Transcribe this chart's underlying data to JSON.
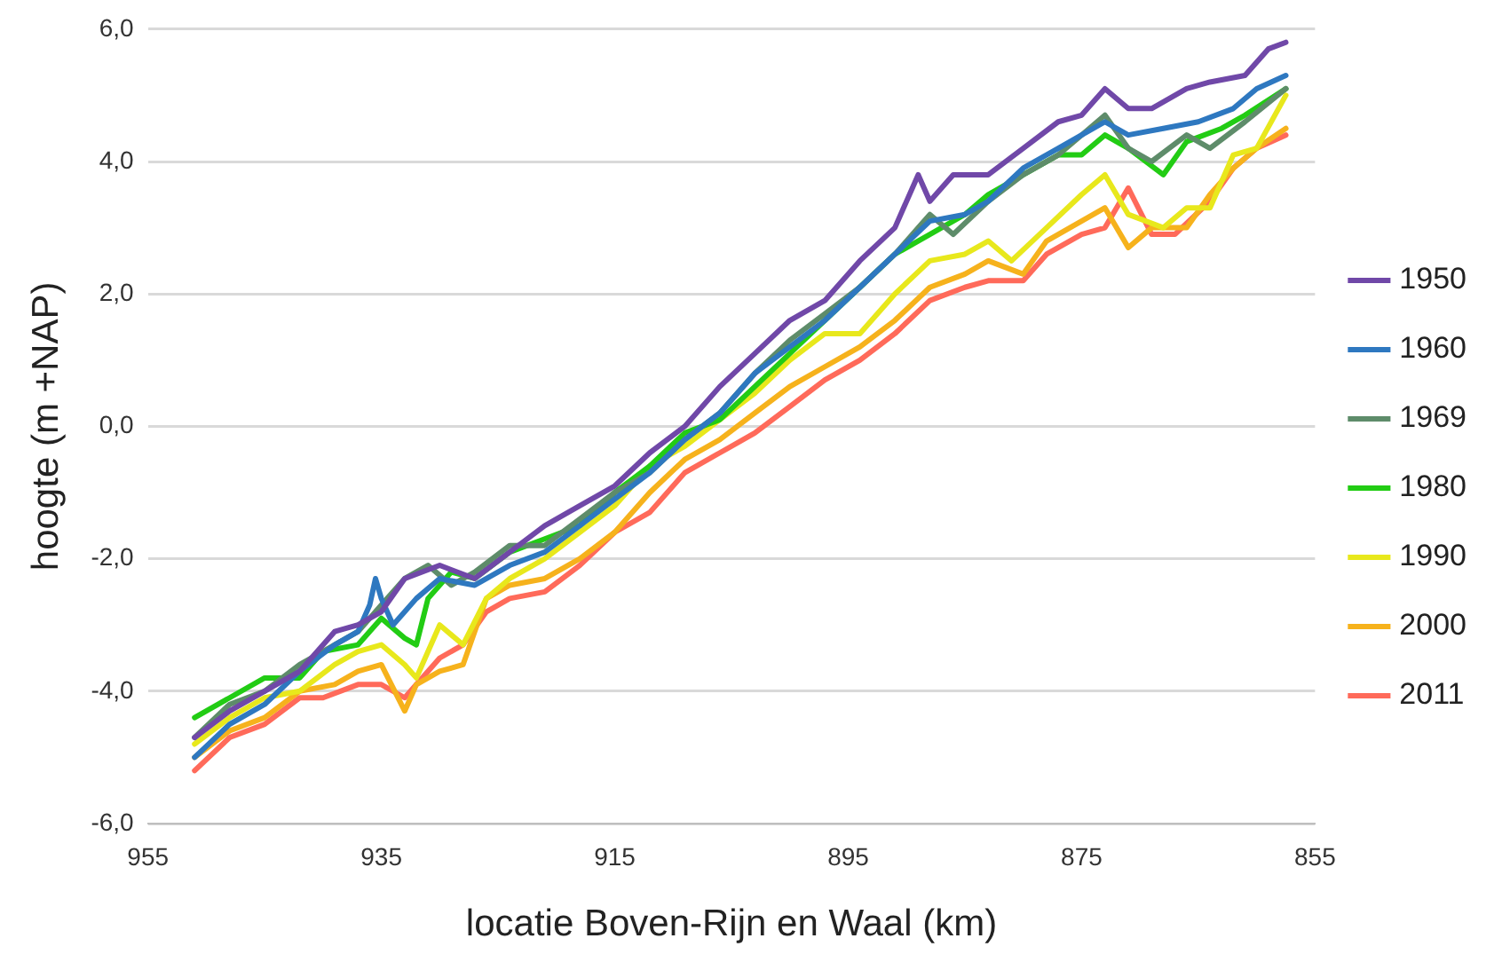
{
  "chart_data": {
    "type": "line",
    "xlabel": "locatie Boven-Rijn en Waal (km)",
    "ylabel": "hoogte (m +NAP)",
    "xlim": [
      955,
      855
    ],
    "xticks": [
      955,
      935,
      915,
      895,
      875,
      855
    ],
    "ylim": [
      -6,
      6
    ],
    "yticks": [
      {
        "value": -6,
        "label": "-6,0"
      },
      {
        "value": -4,
        "label": "-4,0"
      },
      {
        "value": -2,
        "label": "-2,0"
      },
      {
        "value": 0,
        "label": "0,0"
      },
      {
        "value": 2,
        "label": "2,0"
      },
      {
        "value": 4,
        "label": "4,0"
      },
      {
        "value": 6,
        "label": "6,0"
      }
    ],
    "grid": "y",
    "legend": "right",
    "marker": "none",
    "line_style": "solid",
    "series": [
      {
        "name": "1950",
        "color": "#7048a8",
        "x": [
          951,
          948,
          945,
          942,
          939,
          937,
          935,
          933,
          930,
          927,
          924,
          921,
          918,
          915,
          912,
          909,
          906,
          903,
          900,
          897,
          894,
          891,
          889,
          888,
          886,
          883,
          880,
          877,
          875,
          873,
          871,
          869,
          866,
          864,
          861,
          859,
          857.5
        ],
        "values": [
          -4.7,
          -4.3,
          -4.0,
          -3.7,
          -3.1,
          -3.0,
          -2.8,
          -2.3,
          -2.1,
          -2.3,
          -1.9,
          -1.5,
          -1.2,
          -0.9,
          -0.4,
          0.0,
          0.6,
          1.1,
          1.6,
          1.9,
          2.5,
          3.0,
          3.8,
          3.4,
          3.8,
          3.8,
          4.2,
          4.6,
          4.7,
          5.1,
          4.8,
          4.8,
          5.1,
          5.2,
          5.3,
          5.7,
          5.8
        ]
      },
      {
        "name": "1960",
        "color": "#2e78c0",
        "x": [
          951,
          948,
          945,
          942,
          939,
          937,
          936,
          935.5,
          935,
          934,
          932,
          930,
          927,
          924,
          921,
          918,
          915,
          912,
          909,
          906,
          903,
          900,
          897,
          894,
          891,
          888,
          885,
          883,
          880,
          877,
          875,
          873,
          871,
          868,
          865,
          862,
          860,
          857.5
        ],
        "values": [
          -5.0,
          -4.5,
          -4.2,
          -3.7,
          -3.3,
          -3.1,
          -2.7,
          -2.3,
          -2.6,
          -3.0,
          -2.6,
          -2.3,
          -2.4,
          -2.1,
          -1.9,
          -1.5,
          -1.1,
          -0.7,
          -0.2,
          0.2,
          0.8,
          1.2,
          1.6,
          2.1,
          2.6,
          3.1,
          3.2,
          3.4,
          3.9,
          4.2,
          4.4,
          4.6,
          4.4,
          4.5,
          4.6,
          4.8,
          5.1,
          5.3
        ]
      },
      {
        "name": "1969",
        "color": "#5e8c6a",
        "x": [
          951,
          948,
          945,
          942,
          939,
          937,
          935,
          933,
          931,
          929,
          927,
          924,
          921,
          918,
          915,
          912,
          909,
          906,
          903,
          900,
          897,
          894,
          891,
          888,
          886,
          883,
          880,
          877,
          875,
          873,
          871,
          869,
          866,
          864,
          861,
          857.5
        ],
        "values": [
          -4.7,
          -4.2,
          -4.0,
          -3.6,
          -3.3,
          -3.1,
          -2.7,
          -2.3,
          -2.1,
          -2.4,
          -2.2,
          -1.8,
          -1.8,
          -1.4,
          -1.0,
          -0.7,
          -0.2,
          0.2,
          0.8,
          1.3,
          1.7,
          2.1,
          2.6,
          3.2,
          2.9,
          3.4,
          3.8,
          4.1,
          4.4,
          4.7,
          4.2,
          4.0,
          4.4,
          4.2,
          4.6,
          5.1
        ]
      },
      {
        "name": "1980",
        "color": "#22cc14",
        "x": [
          951,
          948,
          945,
          942,
          940,
          937,
          935,
          933,
          932,
          931,
          929,
          927,
          924,
          921,
          918,
          915,
          912,
          909,
          906,
          903,
          900,
          897,
          894,
          891,
          888,
          885,
          883,
          880,
          877,
          875,
          873,
          871,
          868,
          866,
          863,
          861,
          857.5
        ],
        "values": [
          -4.4,
          -4.1,
          -3.8,
          -3.8,
          -3.4,
          -3.3,
          -2.9,
          -3.2,
          -3.3,
          -2.6,
          -2.2,
          -2.3,
          -1.9,
          -1.7,
          -1.5,
          -1.0,
          -0.6,
          -0.1,
          0.1,
          0.6,
          1.1,
          1.6,
          2.1,
          2.6,
          2.9,
          3.2,
          3.5,
          3.8,
          4.1,
          4.1,
          4.4,
          4.2,
          3.8,
          4.3,
          4.5,
          4.7,
          5.1
        ]
      },
      {
        "name": "1990",
        "color": "#e8e81c",
        "x": [
          951,
          948,
          945,
          942,
          939,
          937,
          935,
          933,
          932,
          930,
          928,
          926,
          924,
          921,
          918,
          915,
          912,
          909,
          906,
          903,
          900,
          897,
          894,
          891,
          888,
          885,
          883,
          881,
          878,
          875,
          873,
          871,
          868,
          866,
          864,
          862,
          860,
          857.5
        ],
        "values": [
          -4.8,
          -4.4,
          -4.1,
          -4.0,
          -3.6,
          -3.4,
          -3.3,
          -3.6,
          -3.8,
          -3.0,
          -3.3,
          -2.6,
          -2.3,
          -2.0,
          -1.6,
          -1.2,
          -0.6,
          -0.3,
          0.1,
          0.5,
          1.0,
          1.4,
          1.4,
          2.0,
          2.5,
          2.6,
          2.8,
          2.5,
          3.0,
          3.5,
          3.8,
          3.2,
          3.0,
          3.3,
          3.3,
          4.1,
          4.2,
          5.0
        ]
      },
      {
        "name": "2000",
        "color": "#f6b21c",
        "x": [
          951,
          948,
          945,
          942,
          939,
          937,
          935,
          933,
          932,
          930,
          928,
          926,
          924,
          921,
          918,
          915,
          912,
          909,
          906,
          903,
          900,
          897,
          894,
          891,
          888,
          885,
          883,
          880,
          878,
          875,
          873,
          871,
          869,
          866,
          864,
          862,
          860,
          857.5
        ],
        "values": [
          -5.0,
          -4.6,
          -4.4,
          -4.0,
          -3.9,
          -3.7,
          -3.6,
          -4.3,
          -3.9,
          -3.7,
          -3.6,
          -2.6,
          -2.4,
          -2.3,
          -2.0,
          -1.6,
          -1.0,
          -0.5,
          -0.2,
          0.2,
          0.6,
          0.9,
          1.2,
          1.6,
          2.1,
          2.3,
          2.5,
          2.3,
          2.8,
          3.1,
          3.3,
          2.7,
          3.0,
          3.0,
          3.5,
          3.9,
          4.2,
          4.5
        ]
      },
      {
        "name": "2011",
        "color": "#ff6a5a",
        "x": [
          951,
          948,
          945,
          942,
          940,
          937,
          935,
          933,
          932,
          930,
          928,
          926,
          924,
          921,
          918,
          915,
          912,
          909,
          906,
          903,
          900,
          897,
          894,
          891,
          888,
          885,
          883,
          880,
          878,
          875,
          873,
          871,
          869,
          867,
          864,
          862,
          860,
          857.5
        ],
        "values": [
          -5.2,
          -4.7,
          -4.5,
          -4.1,
          -4.1,
          -3.9,
          -3.9,
          -4.1,
          -3.9,
          -3.5,
          -3.3,
          -2.8,
          -2.6,
          -2.5,
          -2.1,
          -1.6,
          -1.3,
          -0.7,
          -0.4,
          -0.1,
          0.3,
          0.7,
          1.0,
          1.4,
          1.9,
          2.1,
          2.2,
          2.2,
          2.6,
          2.9,
          3.0,
          3.6,
          2.9,
          2.9,
          3.4,
          3.9,
          4.2,
          4.4
        ]
      }
    ]
  }
}
